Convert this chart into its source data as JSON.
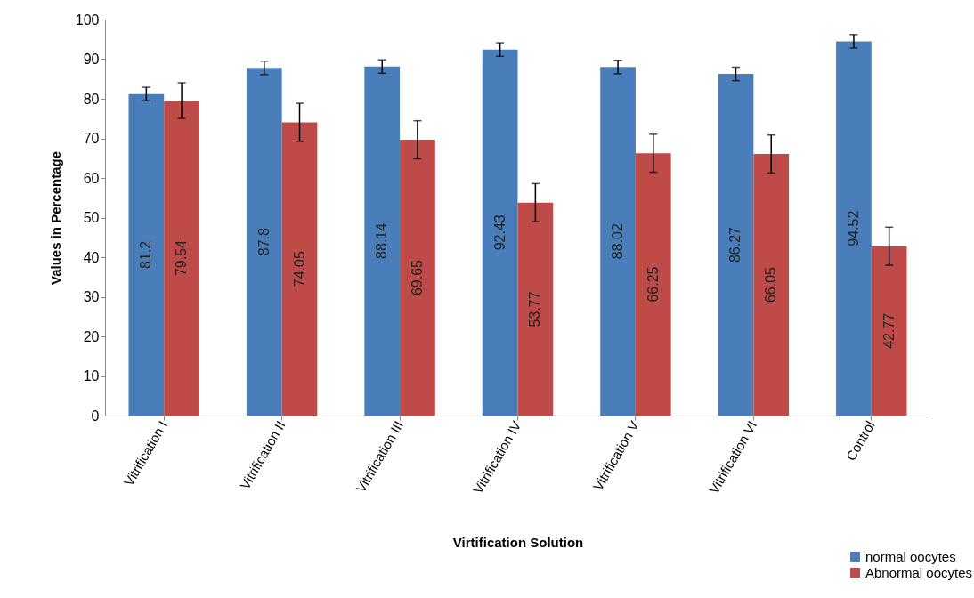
{
  "chart_data": {
    "type": "bar",
    "xlabel": "Virtification Solution",
    "ylabel": "Values in Percentage",
    "categories": [
      "Vitrification I",
      "Vitrification II",
      "Vitrification III",
      "Vitrification IV",
      "Vitrification V",
      "Vitrification VI",
      "Control"
    ],
    "series": [
      {
        "name": "normal oocytes",
        "color": "#4a7ebb",
        "values": [
          81.2,
          87.8,
          88.14,
          92.43,
          88.02,
          86.27,
          94.52
        ],
        "errors": [
          1.7,
          1.7,
          1.7,
          1.7,
          1.7,
          1.7,
          1.7
        ]
      },
      {
        "name": "Abnormal oocytes",
        "color": "#be4b48",
        "values": [
          79.54,
          74.05,
          69.65,
          53.77,
          66.25,
          66.05,
          42.77
        ],
        "errors": [
          4.5,
          4.8,
          4.8,
          4.8,
          4.8,
          4.8,
          4.8
        ]
      }
    ],
    "ylim": [
      0,
      100
    ],
    "yticks": [
      0,
      10,
      20,
      30,
      40,
      50,
      60,
      70,
      80,
      90,
      100
    ],
    "data_labels": true,
    "grid": false,
    "legend": "bottom right"
  }
}
